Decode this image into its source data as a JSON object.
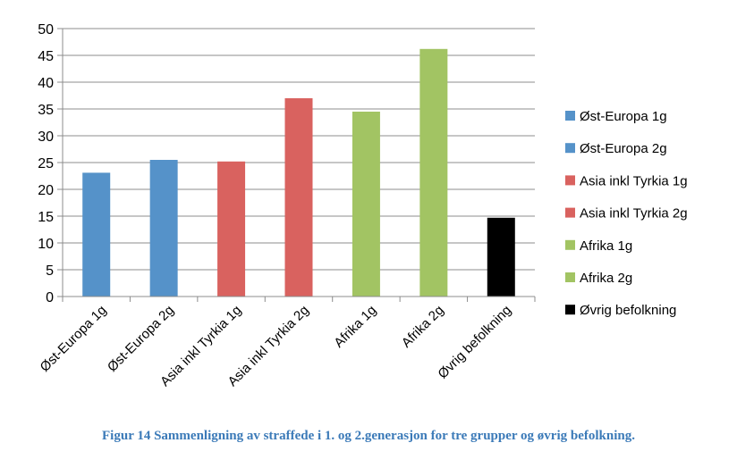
{
  "chart_data": {
    "type": "bar",
    "categories": [
      "Øst-Europa 1g",
      "Øst-Europa 2g",
      "Asia inkl Tyrkia 1g",
      "Asia inkl Tyrkia 2g",
      "Afrika 1g",
      "Afrika 2g",
      "Øvrig befolkning"
    ],
    "values": [
      23.1,
      25.5,
      25.2,
      37.0,
      34.5,
      46.2,
      14.7
    ],
    "colors": [
      "#5592c9",
      "#5592c9",
      "#d9625f",
      "#d9625f",
      "#a2c463",
      "#a2c463",
      "#000000"
    ],
    "yticks": [
      0,
      5,
      10,
      15,
      20,
      25,
      30,
      35,
      40,
      45,
      50
    ],
    "ylim": [
      0,
      50
    ],
    "grid": true,
    "legend_position": "right",
    "legend": [
      {
        "label": "Øst-Europa 1g",
        "color": "#5592c9"
      },
      {
        "label": "Øst-Europa 2g",
        "color": "#5592c9"
      },
      {
        "label": "Asia inkl Tyrkia 1g",
        "color": "#d9625f"
      },
      {
        "label": "Asia inkl Tyrkia 2g",
        "color": "#d9625f"
      },
      {
        "label": "Afrika 1g",
        "color": "#a2c463"
      },
      {
        "label": "Afrika 2g",
        "color": "#a2c463"
      },
      {
        "label": "Øvrig befolkning",
        "color": "#000000"
      }
    ]
  },
  "caption": "Figur 14 Sammenligning av straffede i 1. og 2.generasjon for tre grupper og øvrig befolkning."
}
